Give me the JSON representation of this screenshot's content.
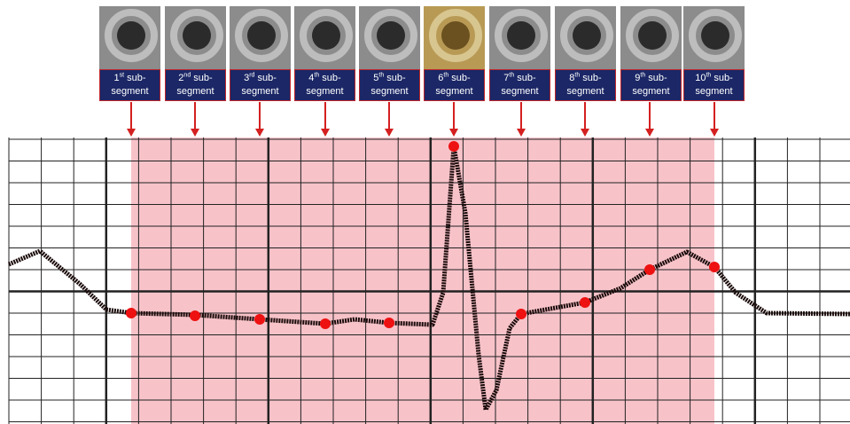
{
  "segments": [
    {
      "ordinal": "1",
      "suffix": "st",
      "word": " sub-",
      "word2": "segment"
    },
    {
      "ordinal": "2",
      "suffix": "nd",
      "word": " sub-",
      "word2": "segment"
    },
    {
      "ordinal": "3",
      "suffix": "rd",
      "word": " sub-",
      "word2": "segment"
    },
    {
      "ordinal": "4",
      "suffix": "th",
      "word": " sub-",
      "word2": "segment"
    },
    {
      "ordinal": "5",
      "suffix": "th",
      "word": " sub-",
      "word2": "segment"
    },
    {
      "ordinal": "6",
      "suffix": "th",
      "word": " sub-",
      "word2": "segment"
    },
    {
      "ordinal": "7",
      "suffix": "th",
      "word": " sub-",
      "word2": "segment"
    },
    {
      "ordinal": "8",
      "suffix": "th",
      "word": " sub-",
      "word2": "segment"
    },
    {
      "ordinal": "9",
      "suffix": "th",
      "word": " sub-",
      "word2": "segment"
    },
    {
      "ordinal": "10",
      "suffix": "th",
      "word": " sub-",
      "word2": "segment"
    }
  ]
}
